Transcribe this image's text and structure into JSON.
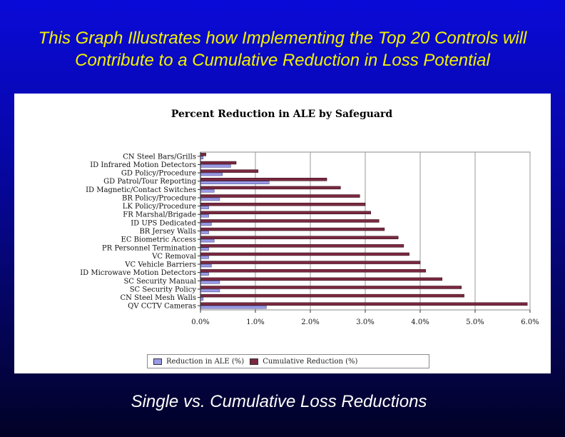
{
  "slide": {
    "title": "This Graph Illustrates how Implementing the Top 20 Controls will Contribute to a Cumulative Reduction in Loss Potential",
    "subtitle": "Single vs. Cumulative Loss Reductions"
  },
  "colors": {
    "single": "#9a9ae6",
    "cumulative": "#7a2840"
  },
  "chart_data": {
    "type": "bar",
    "orientation": "horizontal",
    "title": "Percent Reduction in ALE by Safeguard",
    "categories": [
      "CN Steel Bars/Grills",
      "ID Infrared Motion Detectors",
      "GD Policy/Procedure",
      "GD Patrol/Tour Reporting",
      "ID Magnetic/Contact Switches",
      "BR Policy/Procedure",
      "LK Policy/Procedure",
      "FR Marshal/Brigade",
      "ID UPS Dedicated",
      "BR Jersey Walls",
      "EC Biometric Access",
      "PR Personnel Termination",
      "VC Removal",
      "VC Vehicle Barriers",
      "ID Microwave Motion Detectors",
      "SC Security Manual",
      "SC Security Policy",
      "CN Steel Mesh Walls",
      "QV CCTV Cameras"
    ],
    "x_ticks": [
      "0.0%",
      "1.0%",
      "2.0%",
      "3.0%",
      "4.0%",
      "5.0%",
      "6.0%"
    ],
    "xlim": [
      0,
      6
    ],
    "grid": "vertical",
    "legend_position": "bottom",
    "series": [
      {
        "name": "Reduction in ALE (%)",
        "values": [
          0.05,
          0.55,
          0.4,
          1.25,
          0.25,
          0.35,
          0.15,
          0.15,
          0.2,
          0.15,
          0.25,
          0.15,
          0.15,
          0.2,
          0.15,
          0.35,
          0.35,
          0.05,
          1.2
        ]
      },
      {
        "name": "Cumulative Reduction (%)",
        "values": [
          0.1,
          0.65,
          1.05,
          2.3,
          2.55,
          2.9,
          3.0,
          3.1,
          3.25,
          3.35,
          3.6,
          3.7,
          3.8,
          4.0,
          4.1,
          4.4,
          4.75,
          4.8,
          5.95
        ]
      }
    ]
  }
}
